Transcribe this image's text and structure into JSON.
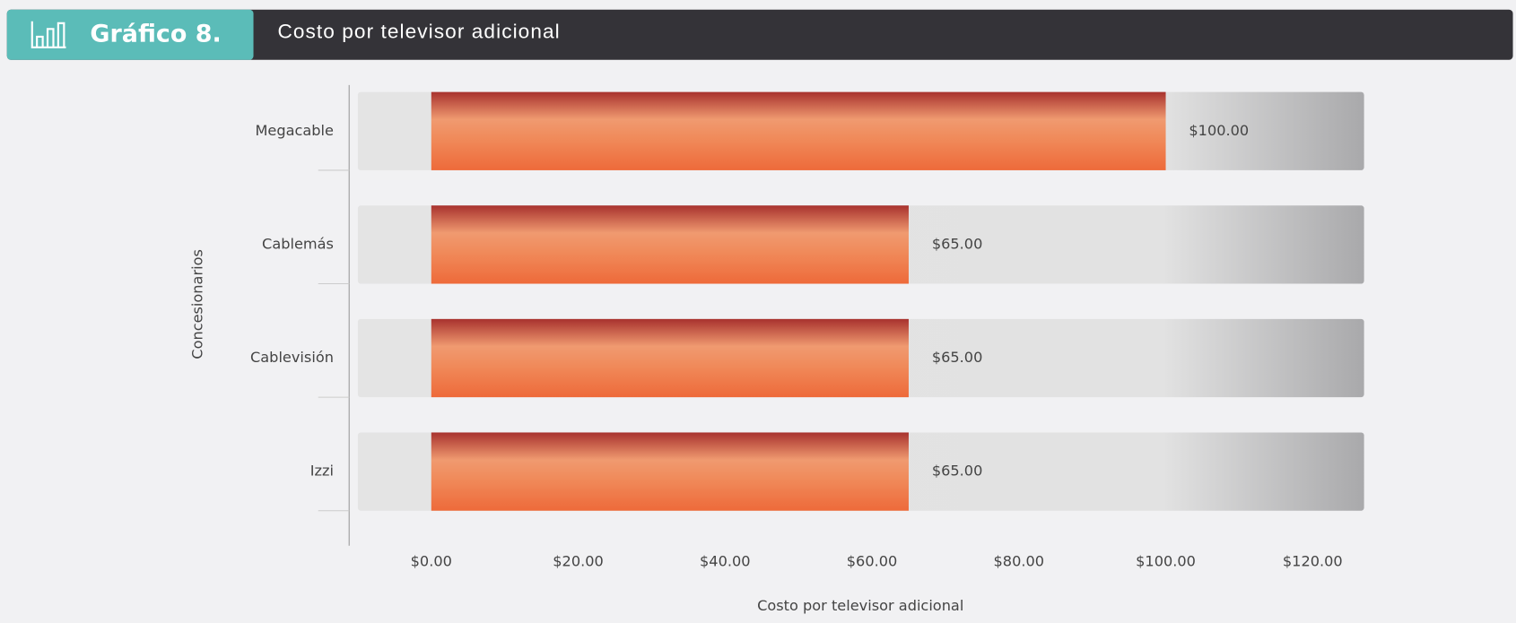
{
  "header": {
    "label": "Gráfico 8."
  },
  "chart_data": {
    "type": "bar",
    "orientation": "horizontal",
    "title": "Costo por televisor adicional",
    "xlabel": "Costo por televisor adicional",
    "ylabel": "Concesionarios",
    "categories": [
      "Megacable",
      "Cablemás",
      "Cablevisión",
      "Izzi"
    ],
    "values": [
      100,
      65,
      65,
      65
    ],
    "value_labels": [
      "$100.00",
      "$65.00",
      "$65.00",
      "$65.00"
    ],
    "color": "#ee6a3a",
    "xlim": [
      -10,
      127
    ],
    "xticks": [
      {
        "value": 0,
        "label": "$0.00"
      },
      {
        "value": 20,
        "label": "$20.00"
      },
      {
        "value": 40,
        "label": "$40.00"
      },
      {
        "value": 60,
        "label": "$60.00"
      },
      {
        "value": 80,
        "label": "$80.00"
      },
      {
        "value": 100,
        "label": "$100.00"
      },
      {
        "value": 120,
        "label": "$120.00"
      }
    ]
  }
}
